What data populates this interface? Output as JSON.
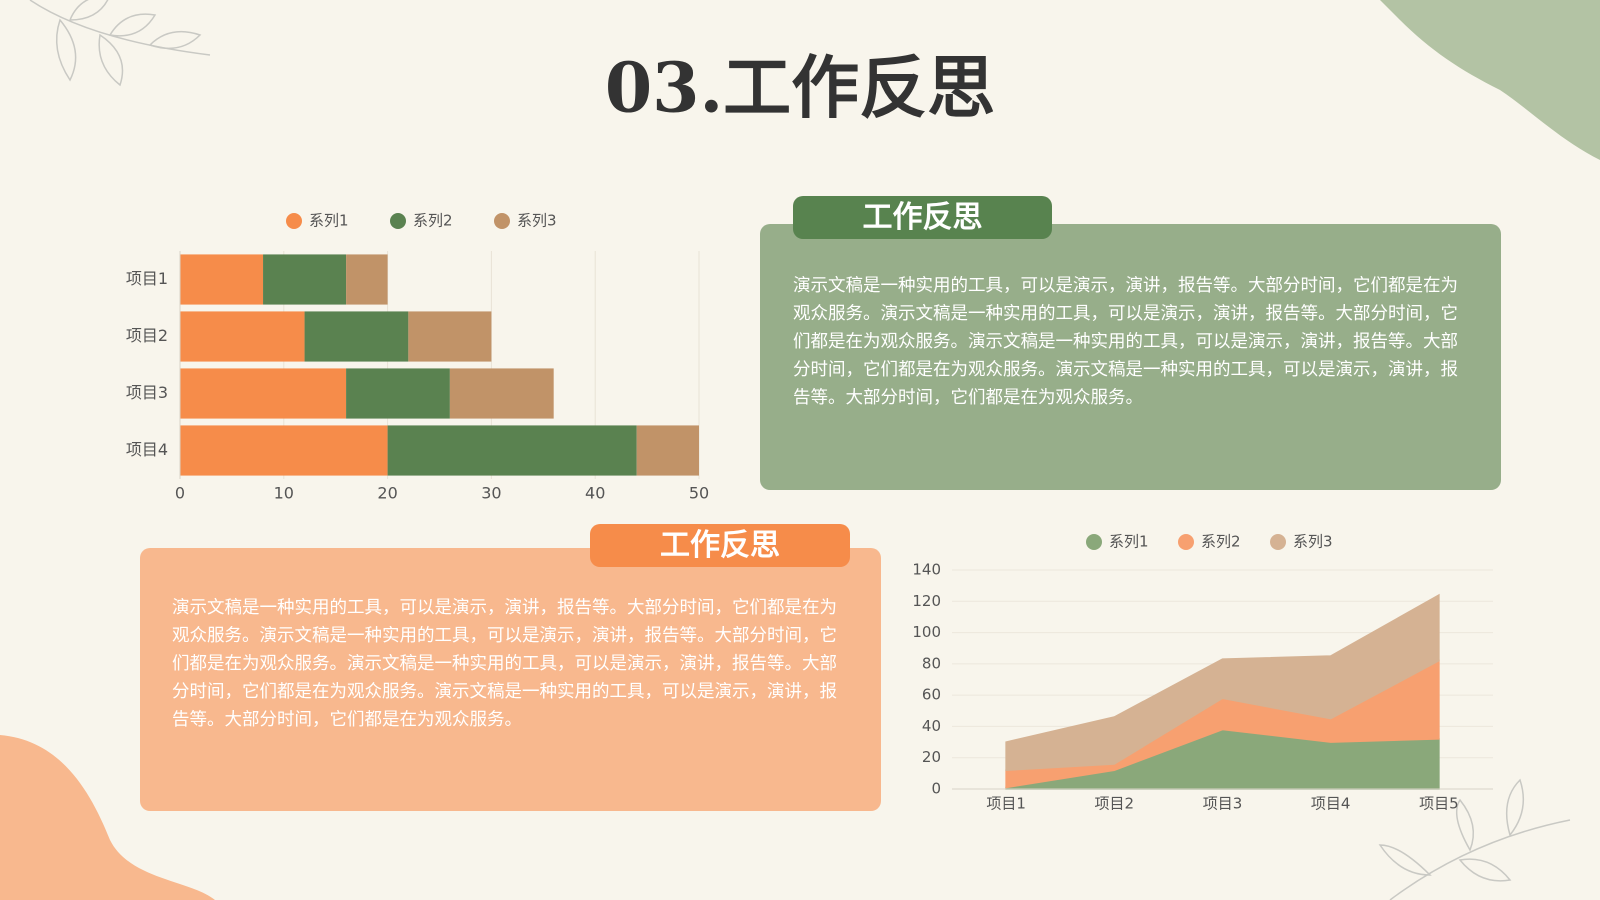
{
  "title": "03.工作反思",
  "panels": [
    {
      "heading": "工作反思",
      "body": "演示文稿是一种实用的工具，可以是演示，演讲，报告等。大部分时间，它们都是在为观众服务。演示文稿是一种实用的工具，可以是演示，演讲，报告等。大部分时间，它们都是在为观众服务。演示文稿是一种实用的工具，可以是演示，演讲，报告等。大部分时间，它们都是在为观众服务。演示文稿是一种实用的工具，可以是演示，演讲，报告等。大部分时间，它们都是在为观众服务。"
    },
    {
      "heading": "工作反思",
      "body": "演示文稿是一种实用的工具，可以是演示，演讲，报告等。大部分时间，它们都是在为观众服务。演示文稿是一种实用的工具，可以是演示，演讲，报告等。大部分时间，它们都是在为观众服务。演示文稿是一种实用的工具，可以是演示，演讲，报告等。大部分时间，它们都是在为观众服务。演示文稿是一种实用的工具，可以是演示，演讲，报告等。大部分时间，它们都是在为观众服务。"
    }
  ],
  "chart_data": [
    {
      "type": "bar",
      "orientation": "horizontal",
      "stacked": true,
      "categories": [
        "项目1",
        "项目2",
        "项目3",
        "项目4"
      ],
      "series": [
        {
          "name": "系列1",
          "color": "#f68c4a",
          "values": [
            8,
            12,
            16,
            20
          ]
        },
        {
          "name": "系列2",
          "color": "#5a8250",
          "values": [
            8,
            10,
            10,
            24
          ]
        },
        {
          "name": "系列3",
          "color": "#c19368",
          "values": [
            4,
            8,
            10,
            6
          ]
        }
      ],
      "xlim": [
        0,
        50
      ],
      "xticks": [
        0,
        10,
        20,
        30,
        40,
        50
      ],
      "grid": true,
      "legend": "top"
    },
    {
      "type": "area",
      "stacked": true,
      "categories": [
        "项目1",
        "项目2",
        "项目3",
        "项目4",
        "项目5"
      ],
      "series": [
        {
          "name": "系列1",
          "color": "#8aa87a",
          "values": [
            1,
            12,
            38,
            30,
            32
          ]
        },
        {
          "name": "系列2",
          "color": "#f7a070",
          "values": [
            11,
            4,
            20,
            15,
            50
          ]
        },
        {
          "name": "系列3",
          "color": "#d5b293",
          "values": [
            18,
            30,
            25,
            40,
            42
          ]
        }
      ],
      "ylim": [
        0,
        140
      ],
      "yticks": [
        0,
        20,
        40,
        60,
        80,
        100,
        120,
        140
      ],
      "grid": true,
      "legend": "top"
    }
  ]
}
